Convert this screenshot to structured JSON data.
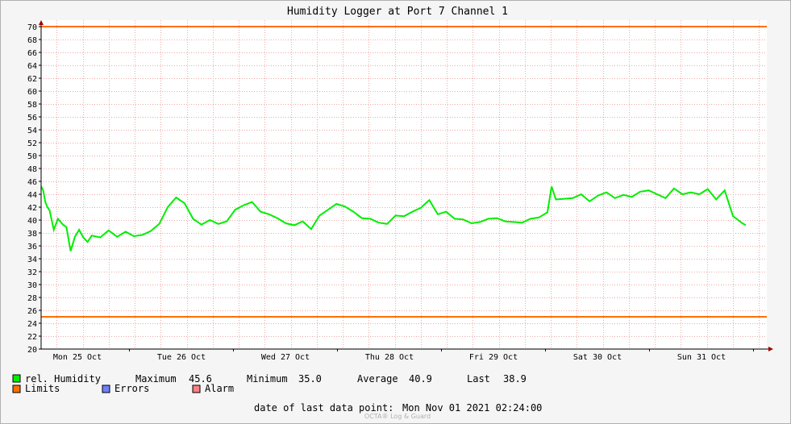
{
  "chart_data": {
    "type": "line",
    "title": "Humidity Logger at Port 7 Channel 1",
    "ylim": [
      20,
      70
    ],
    "y_ticks": [
      20,
      22,
      24,
      26,
      28,
      30,
      32,
      34,
      36,
      38,
      40,
      42,
      44,
      46,
      48,
      50,
      52,
      54,
      56,
      58,
      60,
      62,
      64,
      66,
      68,
      70
    ],
    "x_tick_labels": [
      "Mon 25 Oct",
      "Tue 26 Oct",
      "Wed 27 Oct",
      "Thu 28 Oct",
      "Fri 29 Oct",
      "Sat 30 Oct",
      "Sun 31 Oct"
    ],
    "grid": true,
    "limits": {
      "upper": 70,
      "lower": 25,
      "color": "#ff7000"
    },
    "series": [
      {
        "name": "rel. Humidity",
        "color": "#00ee00",
        "hours": [
          0,
          0.5,
          1,
          1.5,
          2,
          3,
          4,
          5,
          6,
          7,
          8,
          9,
          10,
          11,
          12,
          14,
          16,
          18,
          20,
          22,
          24,
          26,
          28,
          30,
          32,
          34,
          36,
          38,
          40,
          42,
          44,
          46,
          48,
          50,
          52,
          54,
          56,
          58,
          60,
          62,
          64,
          66,
          68,
          70,
          72,
          74,
          76,
          78,
          80,
          82,
          84,
          86,
          88,
          90,
          92,
          94,
          96,
          98,
          100,
          102,
          104,
          106,
          108,
          110,
          112,
          114,
          116,
          118,
          120,
          121,
          122,
          124,
          126,
          128,
          130,
          132,
          134,
          136,
          138,
          140,
          142,
          144,
          146,
          148,
          150,
          152,
          154,
          156,
          158,
          160,
          162,
          164,
          166,
          167
        ],
        "values": [
          45.2,
          44.6,
          42.8,
          42,
          41.5,
          38.5,
          40.2,
          39.4,
          38.9,
          35.2,
          37.4,
          38.5,
          37.3,
          36.6,
          37.6,
          37.3,
          38.4,
          37.4,
          38.2,
          37.5,
          37.7,
          38.3,
          39.4,
          42,
          43.5,
          42.6,
          40.2,
          39.3,
          40,
          39.4,
          39.8,
          41.6,
          42.3,
          42.8,
          41.3,
          40.9,
          40.3,
          39.5,
          39.2,
          39.8,
          38.6,
          40.7,
          41.6,
          42.5,
          42.1,
          41.3,
          40.3,
          40.2,
          39.6,
          39.4,
          40.7,
          40.6,
          41.3,
          41.9,
          43.1,
          40.9,
          41.3,
          40.2,
          40.1,
          39.5,
          39.7,
          40.2,
          40.3,
          39.8,
          39.7,
          39.6,
          40.2,
          40.4,
          41.2,
          45.2,
          43.2,
          43.3,
          43.4,
          44,
          42.9,
          43.8,
          44.3,
          43.4,
          43.9,
          43.6,
          44.4,
          44.6,
          44,
          43.4,
          44.9,
          44,
          44.3,
          44,
          44.8,
          43.2,
          44.6,
          40.6,
          39.6,
          39.2
        ]
      }
    ],
    "stats": {
      "max_label": "Maximum",
      "max": "45.6",
      "min_label": "Minimum",
      "min": "35.0",
      "avg_label": "Average",
      "avg": "40.9",
      "last_label": "Last",
      "last": "38.9"
    },
    "legend": [
      {
        "label": "rel. Humidity",
        "color": "#00ee00"
      },
      {
        "label": "Limits",
        "color": "#ff7000"
      },
      {
        "label": "Errors",
        "color": "#7080ff"
      },
      {
        "label": "Alarm",
        "color": "#ff8080"
      }
    ],
    "footer": {
      "last_point_label": "date of last data point:",
      "last_point_value": "Mon Nov 01 2021 02:24:00",
      "watermark": "OCTA® Log & Guard"
    }
  }
}
